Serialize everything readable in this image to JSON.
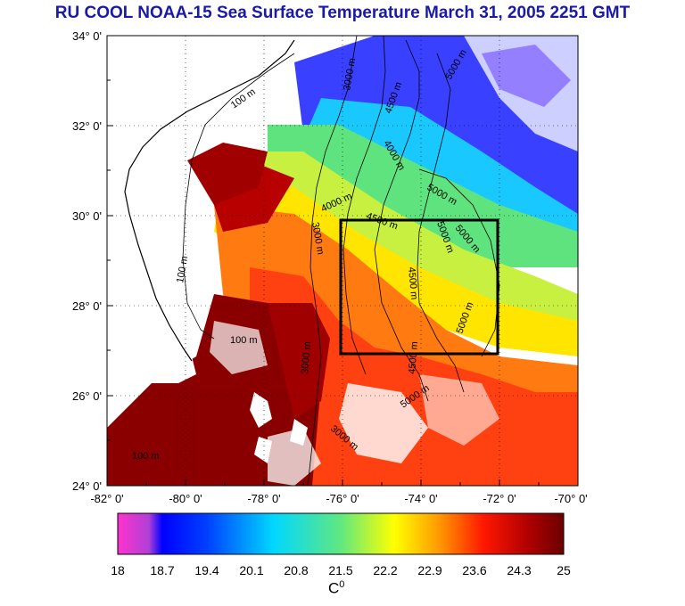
{
  "title": "RU COOL  NOAA-15 Sea Surface Temperature March 31, 2005 2251 GMT",
  "map": {
    "lon_ticks": [
      "-82° 0'",
      "-80° 0'",
      "-78° 0'",
      "-76° 0'",
      "-74° 0'",
      "-72° 0'",
      "-70° 0'"
    ],
    "lat_ticks": [
      "34° 0'",
      "32° 0'",
      "30° 0'",
      "28° 0'",
      "26° 0'",
      "24° 0'"
    ],
    "lon_range": [
      -82,
      -70
    ],
    "lat_range": [
      24,
      34
    ],
    "study_box": {
      "lon": [
        -76,
        -72
      ],
      "lat": [
        27,
        30
      ]
    },
    "contour_labels": [
      "100 m",
      "100 m",
      "100 m",
      "100 m",
      "3000 m",
      "3000 m",
      "3000 m",
      "3000 m",
      "4000 m",
      "4000 m",
      "4500 m",
      "4500 m",
      "4500 m",
      "4500 m",
      "5000 m",
      "5000 m",
      "5000 m",
      "5000 m",
      "5000 m",
      "5000 m"
    ]
  },
  "colorbar": {
    "units": "C",
    "units_sup": "0",
    "labels": [
      "18",
      "18.7",
      "19.4",
      "20.1",
      "20.8",
      "21.5",
      "22.2",
      "22.9",
      "23.6",
      "24.3",
      "25"
    ],
    "colors": [
      "#ff33cc",
      "#0000ff",
      "#00c8ff",
      "#ffff00",
      "#ff0000",
      "#7a0000"
    ]
  }
}
